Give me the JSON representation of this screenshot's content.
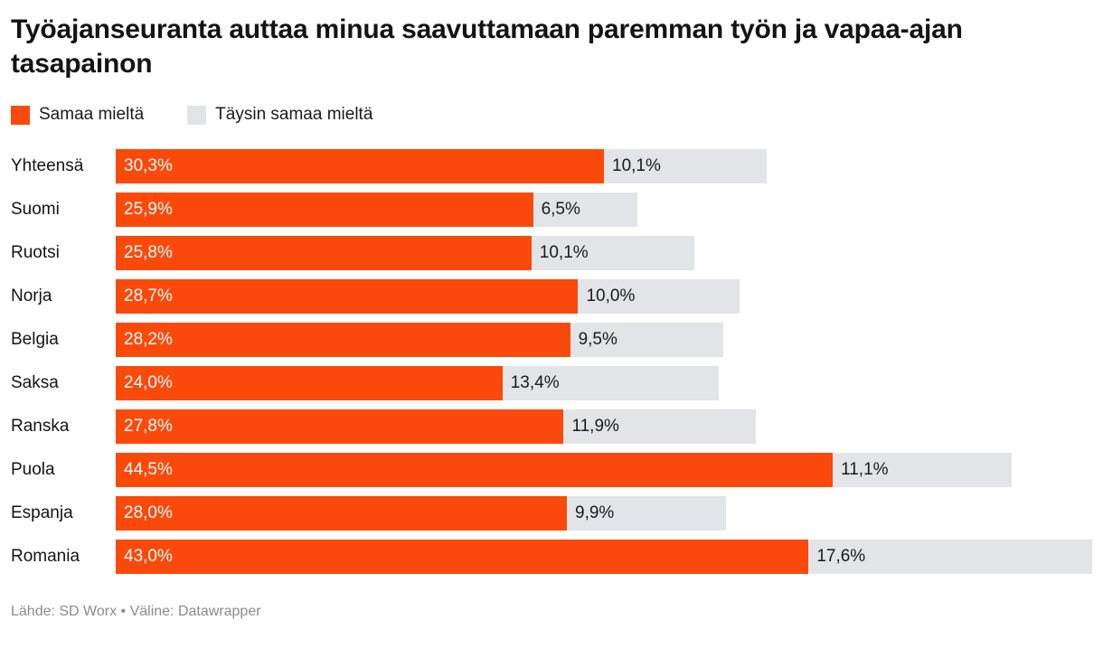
{
  "header": {
    "title": "Työajanseuranta auttaa minua saavuttamaan paremman työn ja vapaa-ajan tasapainon"
  },
  "chart_data": {
    "type": "bar",
    "orientation": "horizontal",
    "stacked": true,
    "title": "Työajanseuranta auttaa minua saavuttamaan paremman työn ja vapaa-ajan tasapainon",
    "categories": [
      "Yhteensä",
      "Suomi",
      "Ruotsi",
      "Norja",
      "Belgia",
      "Saksa",
      "Ranska",
      "Puola",
      "Espanja",
      "Romania"
    ],
    "series": [
      {
        "name": "Samaa mieltä",
        "color": "#fa4a0b",
        "values": [
          30.3,
          25.9,
          25.8,
          28.7,
          28.2,
          24.0,
          27.8,
          44.5,
          28.0,
          43.0
        ],
        "labels": [
          "30,3%",
          "25,9%",
          "25,8%",
          "28,7%",
          "28,2%",
          "24,0%",
          "27,8%",
          "44,5%",
          "28,0%",
          "43,0%"
        ]
      },
      {
        "name": "Täysin samaa mieltä",
        "color": "#e3e4e8",
        "values": [
          10.1,
          6.5,
          10.1,
          10.0,
          9.5,
          13.4,
          11.9,
          11.1,
          9.9,
          17.6
        ],
        "labels": [
          "10,1%",
          "6,5%",
          "10,1%",
          "10,0%",
          "9,5%",
          "13,4%",
          "11,9%",
          "11,1%",
          "9,9%",
          "17,6%"
        ]
      }
    ],
    "xlim": [
      0,
      60.6
    ],
    "grid": false,
    "legend_position": "top"
  },
  "footer": {
    "text": "Lähde: SD Worx • Väline: Datawrapper"
  }
}
